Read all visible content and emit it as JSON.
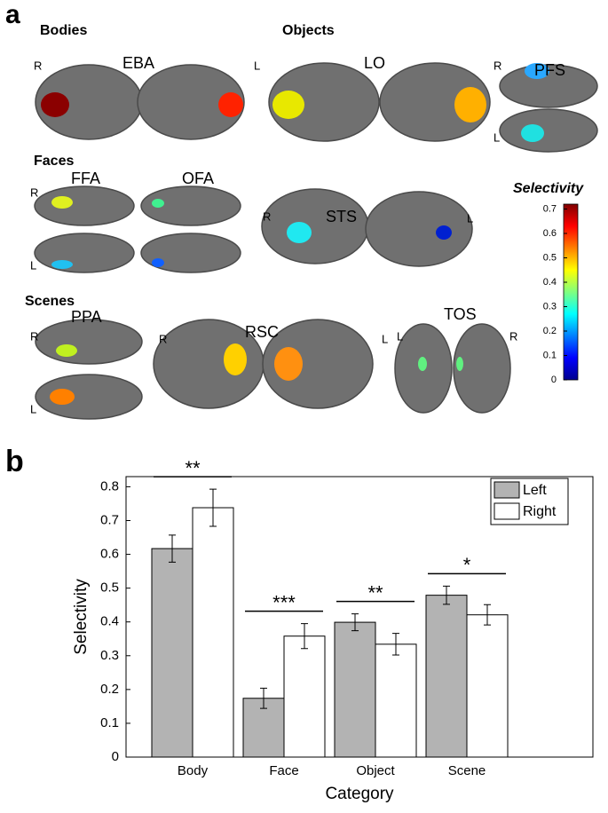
{
  "panel_a": {
    "label": "a",
    "bodies": {
      "heading": "Bodies",
      "roi": "EBA",
      "left_mark": "R",
      "right_mark": "L"
    },
    "objects": {
      "heading": "Objects",
      "lo": "LO",
      "pfs": "PFS",
      "pfs_top": "R",
      "pfs_bottom": "L"
    },
    "faces": {
      "heading": "Faces",
      "ffa": "FFA",
      "ofa": "OFA",
      "top": "R",
      "bottom": "L"
    },
    "sts": {
      "roi": "STS",
      "left_mark": "R",
      "right_mark": "L"
    },
    "scenes": {
      "heading": "Scenes",
      "ppa": "PPA",
      "ppa_top": "R",
      "ppa_bottom": "L",
      "rsc": "RSC",
      "rsc_left": "R",
      "rsc_right": "L",
      "tos": "TOS",
      "tos_left": "L",
      "tos_right": "R"
    },
    "colorbar": {
      "title": "Selectivity",
      "lim": [
        0,
        0.72
      ],
      "ticks": [
        0,
        0.1,
        0.2,
        0.3,
        0.4,
        0.5,
        0.6,
        0.7
      ]
    }
  },
  "panel_b": {
    "label": "b"
  },
  "chart_data": {
    "type": "bar",
    "ylabel": "Selectivity",
    "xlabel": "Category",
    "categories": [
      "Body",
      "Face",
      "Object",
      "Scene"
    ],
    "series": [
      {
        "name": "Left",
        "color": "#b3b3b3",
        "values": [
          0.617,
          0.174,
          0.399,
          0.479
        ],
        "errors": [
          0.04,
          0.03,
          0.025,
          0.027
        ]
      },
      {
        "name": "Right",
        "color": "#ffffff",
        "values": [
          0.738,
          0.358,
          0.334,
          0.421
        ],
        "errors": [
          0.055,
          0.037,
          0.032,
          0.03
        ]
      }
    ],
    "annotations": [
      "**",
      "***",
      "**",
      "*"
    ],
    "ylim": [
      0,
      0.83
    ],
    "yticks": [
      0,
      0.1,
      0.2,
      0.3,
      0.4,
      0.5,
      0.6,
      0.7,
      0.8
    ],
    "legend": "northeast"
  }
}
